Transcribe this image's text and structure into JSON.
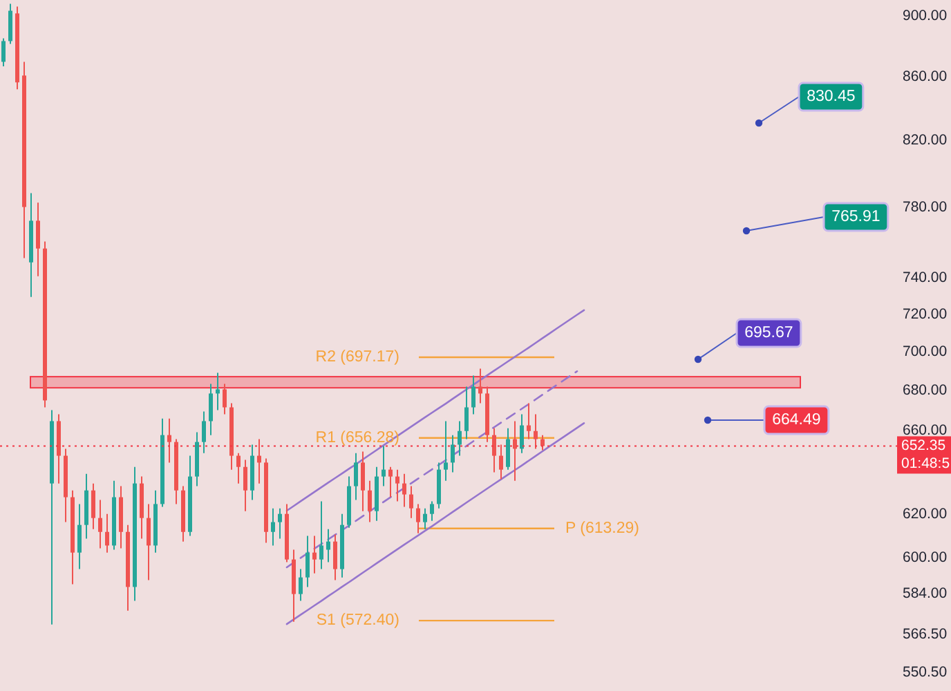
{
  "chart_data": {
    "type": "candlestick",
    "log": true,
    "tick_labels": "y",
    "categories": [
      null,
      null,
      null,
      null,
      null,
      null,
      null,
      null,
      null,
      null,
      null,
      null,
      null,
      null,
      null,
      null,
      null,
      null,
      null,
      null,
      null,
      null,
      null,
      null,
      null,
      null,
      null,
      null,
      null,
      null,
      null,
      null,
      null,
      null,
      null,
      null,
      null,
      null,
      null,
      null,
      null,
      null,
      null,
      null,
      null,
      null,
      null,
      null,
      null,
      null,
      null,
      null,
      null,
      null,
      null,
      null,
      null,
      null,
      null,
      null,
      null,
      null,
      null,
      null,
      null,
      null,
      null,
      null,
      null,
      null,
      null,
      null,
      null,
      null,
      null,
      null,
      null,
      null,
      null,
      null,
      null,
      null,
      null,
      null,
      null,
      null,
      null,
      null,
      null,
      null,
      null,
      null,
      null,
      null,
      null,
      null,
      null,
      null,
      null,
      null,
      null,
      null,
      null,
      null,
      null,
      null,
      null,
      null,
      null,
      null,
      null,
      null,
      null,
      null,
      null,
      null,
      null,
      null,
      null,
      null,
      null,
      null,
      null,
      null,
      null,
      null,
      null,
      null,
      null,
      null
    ],
    "ohlc": [
      [
        869.8,
        885.2,
        866.9,
        883.4
      ],
      [
        883.4,
        908.4,
        881.6,
        903.7
      ],
      [
        901.9,
        906.5,
        852.1,
        856.5
      ],
      [
        860.9,
        869.8,
        750.9,
        780.2
      ],
      [
        748.5,
        788.3,
        729.4,
        772.2
      ],
      [
        772.2,
        782.7,
        740.8,
        756.3
      ],
      [
        756.3,
        760.3,
        671.5,
        675.0
      ],
      [
        634.3,
        670.1,
        570.7,
        664.6
      ],
      [
        664.6,
        668.0,
        634.3,
        647.6
      ],
      [
        647.6,
        651.0,
        616.2,
        627.8
      ],
      [
        627.8,
        631.0,
        588.2,
        602.3
      ],
      [
        602.3,
        624.6,
        594.9,
        614.9
      ],
      [
        614.9,
        638.9,
        608.6,
        631.0
      ],
      [
        631.0,
        634.3,
        613.0,
        618.1
      ],
      [
        618.1,
        626.5,
        604.2,
        611.7
      ],
      [
        611.7,
        620.0,
        602.3,
        605.5
      ],
      [
        605.5,
        635.6,
        603.6,
        627.8
      ],
      [
        627.8,
        633.0,
        604.2,
        611.7
      ],
      [
        611.7,
        614.9,
        576.7,
        587.0
      ],
      [
        587.0,
        642.2,
        580.9,
        634.3
      ],
      [
        634.3,
        637.6,
        608.6,
        618.1
      ],
      [
        618.1,
        624.6,
        590.0,
        605.5
      ],
      [
        605.5,
        631.0,
        602.3,
        624.6
      ],
      [
        624.6,
        665.9,
        623.3,
        657.7
      ],
      [
        657.7,
        665.9,
        644.3,
        654.3
      ],
      [
        654.3,
        655.7,
        624.6,
        631.0
      ],
      [
        631.0,
        633.0,
        607.3,
        611.7
      ],
      [
        611.7,
        647.6,
        609.9,
        637.6
      ],
      [
        637.6,
        659.1,
        633.0,
        654.3
      ],
      [
        654.3,
        669.4,
        648.9,
        664.6
      ],
      [
        664.6,
        683.4,
        657.7,
        678.5
      ],
      [
        678.5,
        689.1,
        670.1,
        680.6
      ],
      [
        680.6,
        683.4,
        668.0,
        671.5
      ],
      [
        671.5,
        673.6,
        640.9,
        647.6
      ],
      [
        647.6,
        648.9,
        634.3,
        642.2
      ],
      [
        642.2,
        645.6,
        621.3,
        631.0
      ],
      [
        631.0,
        653.0,
        626.5,
        647.6
      ],
      [
        647.6,
        655.7,
        634.3,
        644.3
      ],
      [
        644.3,
        646.3,
        606.7,
        611.7
      ],
      [
        611.7,
        622.6,
        605.5,
        616.2
      ],
      [
        616.2,
        622.6,
        608.6,
        620.0
      ],
      [
        620.0,
        624.6,
        598.0,
        599.2
      ],
      [
        599.2,
        603.6,
        571.9,
        583.9
      ],
      [
        583.9,
        594.9,
        580.9,
        591.2
      ],
      [
        591.2,
        609.9,
        587.0,
        602.3
      ],
      [
        602.3,
        609.9,
        593.0,
        599.2
      ],
      [
        599.2,
        625.9,
        594.9,
        605.5
      ],
      [
        603.6,
        613.0,
        598.0,
        607.3
      ],
      [
        607.3,
        610.5,
        590.0,
        594.9
      ],
      [
        594.9,
        620.0,
        591.2,
        614.9
      ],
      [
        614.9,
        637.6,
        613.6,
        633.0
      ],
      [
        633.0,
        648.9,
        626.5,
        644.3
      ],
      [
        644.3,
        649.6,
        621.3,
        631.0
      ],
      [
        631.0,
        635.6,
        616.2,
        621.3
      ],
      [
        621.3,
        642.2,
        616.8,
        637.6
      ],
      [
        637.6,
        652.3,
        633.0,
        640.9
      ],
      [
        640.9,
        642.2,
        627.8,
        637.6
      ],
      [
        637.6,
        640.9,
        625.9,
        634.3
      ],
      [
        634.3,
        638.9,
        623.3,
        629.1
      ],
      [
        629.1,
        633.0,
        618.1,
        622.6
      ],
      [
        622.6,
        624.6,
        611.1,
        616.2
      ],
      [
        616.2,
        622.6,
        613.0,
        620.0
      ],
      [
        620.0,
        625.9,
        616.8,
        624.6
      ],
      [
        624.6,
        644.3,
        622.6,
        640.9
      ],
      [
        640.9,
        664.6,
        635.6,
        644.3
      ],
      [
        644.3,
        657.7,
        639.6,
        653.0
      ],
      [
        653.0,
        664.6,
        647.6,
        659.7
      ],
      [
        659.7,
        682.0,
        655.7,
        671.5
      ],
      [
        671.5,
        687.7,
        668.0,
        682.0
      ],
      [
        682.0,
        691.2,
        673.6,
        678.5
      ],
      [
        678.5,
        682.0,
        654.3,
        657.7
      ],
      [
        657.7,
        661.1,
        639.6,
        647.6
      ],
      [
        647.6,
        653.0,
        636.3,
        640.9
      ],
      [
        642.2,
        661.1,
        640.9,
        655.7
      ],
      [
        655.7,
        664.6,
        635.6,
        651.0
      ],
      [
        651.0,
        668.0,
        648.9,
        662.5
      ],
      [
        662.5,
        673.6,
        655.7,
        659.7
      ],
      [
        659.7,
        668.0,
        651.0,
        655.7
      ],
      [
        655.7,
        657.7,
        650.3,
        652.35
      ],
      null,
      null,
      null,
      null,
      null,
      null,
      null,
      null,
      null,
      null,
      null,
      null,
      null,
      null,
      null,
      null,
      null,
      null,
      null,
      null,
      null,
      null,
      null,
      null,
      null,
      null,
      null,
      null,
      null,
      null,
      null,
      null,
      null,
      null,
      null,
      null,
      null,
      null,
      null,
      null,
      null,
      null,
      null,
      null,
      null,
      null,
      null,
      null,
      null,
      null,
      null
    ],
    "series": [
      {
        "type": "line",
        "color": "#9575cd",
        "values": [
          null,
          null,
          null,
          null,
          null,
          null,
          null,
          null,
          null,
          null,
          null,
          null,
          null,
          null,
          null,
          null,
          null,
          null,
          null,
          null,
          null,
          null,
          null,
          null,
          null,
          null,
          null,
          null,
          null,
          null,
          null,
          null,
          null,
          null,
          null,
          null,
          null,
          null,
          null,
          null,
          null,
          621.5,
          623.7,
          625.9,
          628.1,
          630.3,
          632.5,
          634.7,
          636.9,
          639.1,
          641.3,
          643.5,
          645.8,
          648.1,
          650.4,
          652.7,
          655.0,
          657.3,
          659.6,
          661.9,
          664.2,
          666.5,
          668.8,
          671.1,
          673.4,
          675.8,
          678.2,
          680.6,
          683.0,
          685.4,
          687.8,
          690.2,
          692.6,
          695.0,
          697.4,
          699.8,
          702.2,
          704.7,
          707.2,
          709.7,
          712.2,
          714.7,
          717.2,
          719.7,
          722.2,
          null,
          null,
          null,
          null,
          null,
          null,
          null,
          null,
          null,
          null,
          null,
          null,
          null,
          null,
          null,
          null,
          null,
          null,
          null,
          null,
          null,
          null,
          null,
          null,
          null,
          null,
          null,
          null,
          null,
          null,
          null,
          null,
          null,
          null,
          null,
          null,
          null,
          null,
          null,
          null,
          null,
          null,
          null,
          null,
          null
        ]
      },
      {
        "type": "line",
        "color": "#9575cd",
        "line_style": "dashed",
        "values": [
          null,
          null,
          null,
          null,
          null,
          null,
          null,
          null,
          null,
          null,
          null,
          null,
          null,
          null,
          null,
          null,
          null,
          null,
          null,
          null,
          null,
          null,
          null,
          null,
          null,
          null,
          null,
          null,
          null,
          null,
          null,
          null,
          null,
          null,
          null,
          null,
          null,
          null,
          null,
          null,
          null,
          595.7,
          597.8,
          599.9,
          602.0,
          604.1,
          606.2,
          608.3,
          610.4,
          612.5,
          614.6,
          616.8,
          619.0,
          621.2,
          623.4,
          625.6,
          627.8,
          630.0,
          632.2,
          634.4,
          636.6,
          638.8,
          641.0,
          643.2,
          645.5,
          647.8,
          650.1,
          652.4,
          654.7,
          657.0,
          659.3,
          661.6,
          663.9,
          666.2,
          668.5,
          670.8,
          673.1,
          675.5,
          677.9,
          680.3,
          682.7,
          685.1,
          687.5,
          689.9,
          null,
          null,
          null,
          null,
          null,
          null,
          null,
          null,
          null,
          null,
          null,
          null,
          null,
          null,
          null,
          null,
          null,
          null,
          null,
          null,
          null,
          null,
          null,
          null,
          null,
          null,
          null,
          null,
          null,
          null,
          null,
          null,
          null,
          null,
          null,
          null,
          null,
          null,
          null,
          null,
          null,
          null,
          null,
          null,
          null,
          null
        ]
      },
      {
        "type": "line",
        "color": "#9575cd",
        "values": [
          null,
          null,
          null,
          null,
          null,
          null,
          null,
          null,
          null,
          null,
          null,
          null,
          null,
          null,
          null,
          null,
          null,
          null,
          null,
          null,
          null,
          null,
          null,
          null,
          null,
          null,
          null,
          null,
          null,
          null,
          null,
          null,
          null,
          null,
          null,
          null,
          null,
          null,
          null,
          null,
          null,
          570.9,
          572.9,
          574.9,
          576.9,
          578.9,
          580.9,
          583.0,
          585.0,
          587.1,
          589.1,
          591.2,
          593.3,
          595.4,
          597.5,
          599.6,
          601.7,
          603.8,
          605.9,
          608.0,
          610.1,
          612.2,
          614.3,
          616.5,
          618.7,
          620.9,
          623.1,
          625.3,
          627.5,
          629.7,
          631.9,
          634.1,
          636.3,
          638.5,
          640.7,
          642.9,
          645.2,
          647.5,
          649.8,
          652.1,
          654.4,
          656.7,
          659.0,
          661.3,
          663.6,
          null,
          null,
          null,
          null,
          null,
          null,
          null,
          null,
          null,
          null,
          null,
          null,
          null,
          null,
          null,
          null,
          null,
          null,
          null,
          null,
          null,
          null,
          null,
          null,
          null,
          null,
          null,
          null,
          null,
          null,
          null,
          null,
          null,
          null,
          null,
          null,
          null,
          null,
          null,
          null,
          null,
          null,
          null,
          null,
          null
        ]
      }
    ],
    "ylim": [
      543,
      911
    ],
    "yticks": [
      {
        "value": 900,
        "label": "900.00"
      },
      {
        "value": 860,
        "label": "860.00"
      },
      {
        "value": 820,
        "label": "820.00"
      },
      {
        "value": 780,
        "label": "780.00"
      },
      {
        "value": 740,
        "label": "740.00"
      },
      {
        "value": 720,
        "label": "720.00"
      },
      {
        "value": 700,
        "label": "700.00"
      },
      {
        "value": 680,
        "label": "680.00"
      },
      {
        "value": 660,
        "label": "660.00"
      },
      {
        "value": 620,
        "label": "620.00"
      },
      {
        "value": 600,
        "label": "600.00"
      },
      {
        "value": 584,
        "label": "584.00"
      },
      {
        "value": 566.5,
        "label": "566.50"
      },
      {
        "value": 550.5,
        "label": "550.50"
      }
    ],
    "bands": [
      {
        "axis": "y",
        "from": 681.4,
        "to": 687.1,
        "color": "#f23645"
      }
    ],
    "ref_lines": [
      {
        "axis": "y",
        "value": 697.17,
        "label": "R2 (697.17)",
        "color": "#f5a33b"
      },
      {
        "axis": "y",
        "value": 656.28,
        "label": "R1 (656.28)",
        "color": "#f5a33b"
      },
      {
        "axis": "y",
        "value": 613.29,
        "label": "P (613.29)",
        "color": "#f5a33b"
      },
      {
        "axis": "y",
        "value": 572.4,
        "label": "S1 (572.40)",
        "color": "#f5a33b"
      },
      {
        "axis": "y",
        "value": 652.35,
        "label": "652.35",
        "color": "#f23645",
        "line_style": "dotted"
      }
    ],
    "annotations": [
      "830.45",
      "765.91",
      "695.67",
      "664.49",
      "01:48:5"
    ]
  }
}
